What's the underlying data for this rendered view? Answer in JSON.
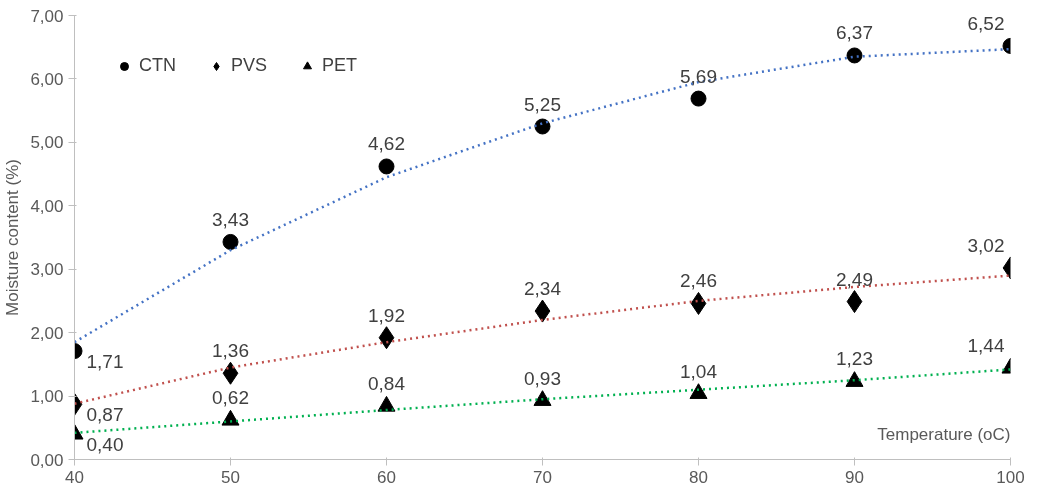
{
  "chart_data": {
    "type": "scatter",
    "xlabel": "Temperature (oC)",
    "ylabel": "Moisture content (%)",
    "x": [
      40,
      50,
      60,
      70,
      80,
      90,
      100
    ],
    "xlim": [
      40,
      100
    ],
    "xticks": [
      40,
      50,
      60,
      70,
      80,
      90,
      100
    ],
    "ylim": [
      0,
      7
    ],
    "yticks": [
      {
        "value": 0,
        "label": "0,00"
      },
      {
        "value": 1,
        "label": "1,00"
      },
      {
        "value": 2,
        "label": "2,00"
      },
      {
        "value": 3,
        "label": "3,00"
      },
      {
        "value": 4,
        "label": "4,00"
      },
      {
        "value": 5,
        "label": "5,00"
      },
      {
        "value": 6,
        "label": "6,00"
      },
      {
        "value": 7,
        "label": "7,00"
      }
    ],
    "grid": false,
    "legend": "top left",
    "series": [
      {
        "name": "CTN",
        "color": "#000000",
        "marker": "circle",
        "values": [
          1.71,
          3.43,
          4.62,
          5.25,
          5.69,
          6.37,
          6.52
        ],
        "value_labels": [
          "1,71",
          "3,43",
          "4,62",
          "5,25",
          "5,69",
          "6,37",
          "6,52"
        ]
      },
      {
        "name": "PVS",
        "color": "#000000",
        "marker": "diamond",
        "values": [
          0.87,
          1.36,
          1.92,
          2.34,
          2.46,
          2.49,
          3.02
        ],
        "value_labels": [
          "0,87",
          "1,36",
          "1,92",
          "2,34",
          "2,46",
          "2,49",
          "3,02"
        ]
      },
      {
        "name": "PET",
        "color": "#000000",
        "marker": "triangle",
        "values": [
          0.4,
          0.62,
          0.84,
          0.93,
          1.04,
          1.23,
          1.44
        ],
        "value_labels": [
          "0,40",
          "0,62",
          "0,84",
          "0,93",
          "1,04",
          "1,23",
          "1,44"
        ]
      },
      {
        "type": "line",
        "color": "#4472c4",
        "line_style": "dotted",
        "marker": "none",
        "x": [
          40,
          50,
          60,
          70,
          80,
          90,
          100
        ],
        "values": [
          1.85,
          3.3,
          4.45,
          5.3,
          5.95,
          6.35,
          6.47
        ]
      },
      {
        "type": "line",
        "color": "#c0504d",
        "line_style": "dotted",
        "marker": "none",
        "x": [
          40,
          50,
          60,
          70,
          80,
          90,
          100
        ],
        "values": [
          0.88,
          1.45,
          1.85,
          2.2,
          2.5,
          2.72,
          2.9
        ]
      },
      {
        "type": "line",
        "color": "#00b050",
        "line_style": "dotted",
        "marker": "none",
        "x": [
          40,
          50,
          60,
          70,
          80,
          90,
          100
        ],
        "values": [
          0.42,
          0.6,
          0.78,
          0.95,
          1.1,
          1.25,
          1.42
        ]
      }
    ]
  }
}
